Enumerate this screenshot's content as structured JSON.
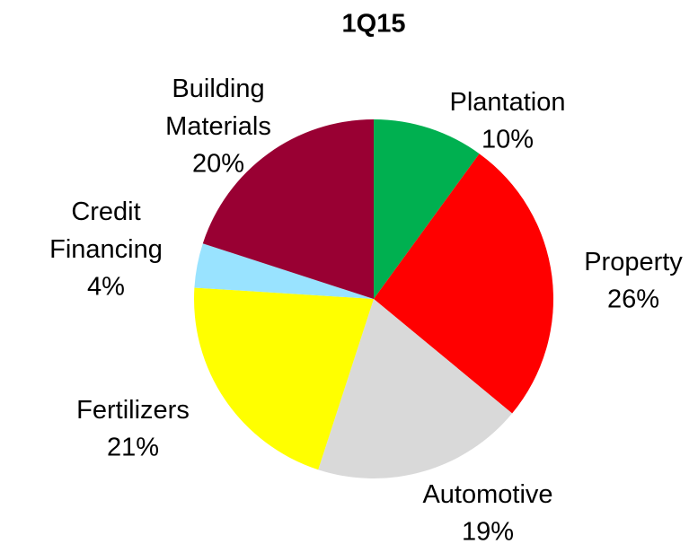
{
  "chart_data": {
    "type": "pie",
    "title": "1Q15",
    "categories": [
      "Plantation",
      "Property",
      "Automotive",
      "Fertilizers",
      "Credit Financing",
      "Building Materials"
    ],
    "values": [
      10,
      26,
      19,
      21,
      4,
      20
    ],
    "value_labels": [
      "10%",
      "26%",
      "19%",
      "21%",
      "4%",
      "20%"
    ],
    "colors": [
      "#00b050",
      "#ff0000",
      "#d9d9d9",
      "#ffff00",
      "#99e3ff",
      "#990033"
    ]
  }
}
